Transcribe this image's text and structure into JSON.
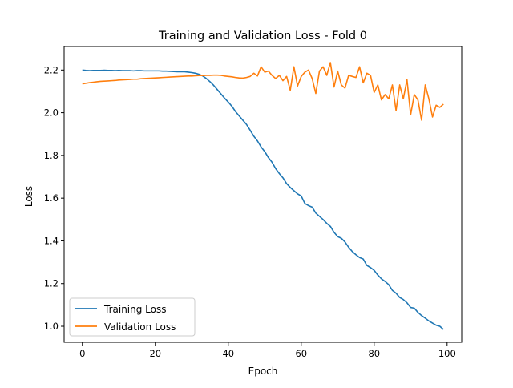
{
  "chart_data": {
    "type": "line",
    "title": "Training and Validation Loss - Fold 0",
    "xlabel": "Epoch",
    "ylabel": "Loss",
    "xlim": [
      -5,
      104
    ],
    "ylim": [
      0.925,
      2.31
    ],
    "xticks": [
      0,
      20,
      40,
      60,
      80,
      100
    ],
    "xtick_labels": [
      "0",
      "20",
      "40",
      "60",
      "80",
      "100"
    ],
    "yticks": [
      1.0,
      1.2,
      1.4,
      1.6,
      1.8,
      2.0,
      2.2
    ],
    "ytick_labels": [
      "1.0",
      "1.2",
      "1.4",
      "1.6",
      "1.8",
      "2.0",
      "2.2"
    ],
    "grid": false,
    "legend_position": "lower-left",
    "x": [
      0,
      1,
      2,
      3,
      4,
      5,
      6,
      7,
      8,
      9,
      10,
      11,
      12,
      13,
      14,
      15,
      16,
      17,
      18,
      19,
      20,
      21,
      22,
      23,
      24,
      25,
      26,
      27,
      28,
      29,
      30,
      31,
      32,
      33,
      34,
      35,
      36,
      37,
      38,
      39,
      40,
      41,
      42,
      43,
      44,
      45,
      46,
      47,
      48,
      49,
      50,
      51,
      52,
      53,
      54,
      55,
      56,
      57,
      58,
      59,
      60,
      61,
      62,
      63,
      64,
      65,
      66,
      67,
      68,
      69,
      70,
      71,
      72,
      73,
      74,
      75,
      76,
      77,
      78,
      79,
      80,
      81,
      82,
      83,
      84,
      85,
      86,
      87,
      88,
      89,
      90,
      91,
      92,
      93,
      94,
      95,
      96,
      97,
      98,
      99
    ],
    "series": [
      {
        "name": "Training Loss",
        "color": "#1f77b4",
        "values": [
          2.2,
          2.198,
          2.197,
          2.198,
          2.198,
          2.198,
          2.199,
          2.198,
          2.198,
          2.197,
          2.198,
          2.197,
          2.197,
          2.197,
          2.196,
          2.197,
          2.197,
          2.196,
          2.196,
          2.196,
          2.196,
          2.196,
          2.195,
          2.195,
          2.194,
          2.193,
          2.192,
          2.192,
          2.192,
          2.19,
          2.188,
          2.185,
          2.18,
          2.172,
          2.16,
          2.145,
          2.128,
          2.108,
          2.088,
          2.068,
          2.05,
          2.03,
          2.005,
          1.985,
          1.965,
          1.945,
          1.918,
          1.89,
          1.868,
          1.84,
          1.818,
          1.79,
          1.768,
          1.738,
          1.715,
          1.695,
          1.668,
          1.65,
          1.635,
          1.62,
          1.61,
          1.575,
          1.565,
          1.558,
          1.53,
          1.515,
          1.5,
          1.482,
          1.468,
          1.44,
          1.42,
          1.412,
          1.395,
          1.37,
          1.35,
          1.335,
          1.322,
          1.315,
          1.285,
          1.275,
          1.262,
          1.24,
          1.222,
          1.21,
          1.195,
          1.168,
          1.155,
          1.135,
          1.125,
          1.11,
          1.088,
          1.085,
          1.065,
          1.05,
          1.038,
          1.025,
          1.015,
          1.005,
          1.0,
          0.985
        ]
      },
      {
        "name": "Validation Loss",
        "color": "#ff7f0e",
        "values": [
          2.135,
          2.138,
          2.141,
          2.143,
          2.145,
          2.147,
          2.148,
          2.149,
          2.15,
          2.151,
          2.153,
          2.154,
          2.155,
          2.156,
          2.157,
          2.157,
          2.159,
          2.16,
          2.161,
          2.162,
          2.163,
          2.164,
          2.165,
          2.166,
          2.167,
          2.168,
          2.169,
          2.17,
          2.171,
          2.172,
          2.172,
          2.173,
          2.174,
          2.174,
          2.175,
          2.175,
          2.176,
          2.176,
          2.175,
          2.172,
          2.17,
          2.168,
          2.165,
          2.163,
          2.162,
          2.165,
          2.17,
          2.185,
          2.172,
          2.215,
          2.19,
          2.195,
          2.175,
          2.16,
          2.175,
          2.15,
          2.17,
          2.105,
          2.215,
          2.125,
          2.17,
          2.19,
          2.2,
          2.16,
          2.09,
          2.195,
          2.215,
          2.175,
          2.235,
          2.12,
          2.195,
          2.13,
          2.115,
          2.175,
          2.17,
          2.165,
          2.215,
          2.14,
          2.185,
          2.175,
          2.095,
          2.13,
          2.06,
          2.085,
          2.065,
          2.13,
          2.01,
          2.13,
          2.065,
          2.155,
          1.99,
          2.085,
          2.06,
          1.965,
          2.13,
          2.065,
          1.98,
          2.035,
          2.025,
          2.04
        ]
      }
    ]
  }
}
